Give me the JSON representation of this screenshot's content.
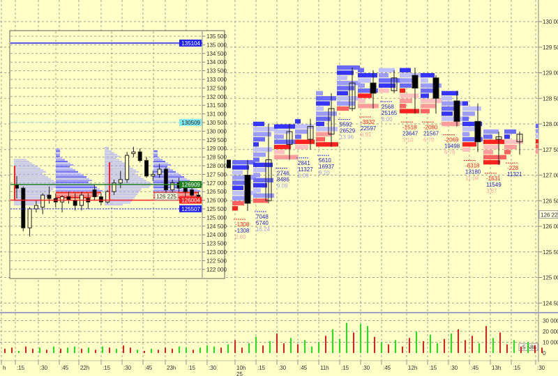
{
  "chart_data": {
    "type": "footprint-candlestick",
    "colors": {
      "background": "#ffffc8",
      "buy": "#3535ff",
      "sell": "#ff2020",
      "buy_light": "#a8a8ff",
      "sell_light": "#ff9c9c",
      "vol_up": "#20e020",
      "vol_down": "#e02020",
      "grid": "#a0a090"
    },
    "price_axis": {
      "ticks": [
        "130 000",
        "129 500",
        "129 000",
        "128 500",
        "128 000",
        "127 500",
        "127 000",
        "126 500",
        "126 000",
        "125 500",
        "125 000",
        "124 500"
      ],
      "tick_values": [
        130000,
        129500,
        129000,
        128500,
        128000,
        127500,
        127000,
        126500,
        126000,
        125500,
        125000,
        124500
      ],
      "current_label": "126 225",
      "current_value": 126225,
      "range": [
        124500,
        130000
      ]
    },
    "volume_axis": {
      "ticks": [
        "30 000",
        "20 000",
        "10 000",
        "0"
      ],
      "tick_values": [
        30000,
        20000,
        10000,
        0
      ],
      "current_label": "5 586",
      "current_value": 5586
    },
    "time_axis": {
      "labels": [
        "h",
        ":15",
        ":30",
        ":45",
        "22h",
        ":15",
        ":30",
        ":45",
        "23h",
        ":15",
        ":30",
        "10h",
        ":15",
        ":30",
        ":45",
        "11h",
        ":15",
        ":30",
        ":45",
        "12h",
        ":15",
        ":30",
        ":45",
        "13h",
        ":15",
        ":30"
      ],
      "date_label": "25"
    },
    "columns": [
      {
        "time": "10h",
        "open": 127000,
        "high": 127300,
        "low": 126300,
        "close": 126450,
        "delta": "-1308",
        "volume": "-1308",
        "ratio": "2.60"
      },
      {
        "time": "10:15",
        "open": 126500,
        "high": 128000,
        "low": 126450,
        "close": 127300,
        "delta": "7048",
        "volume": "5740",
        "ratio": "16.24"
      },
      {
        "time": "10:30",
        "open": 127600,
        "high": 128000,
        "low": 127300,
        "close": 127850,
        "delta": "2746",
        "volume": "8486",
        "ratio": "9.09"
      },
      {
        "time": "10:45",
        "open": 127700,
        "high": 128100,
        "low": 127500,
        "close": 127950,
        "delta": "2841",
        "volume": "11327",
        "ratio": "8.09"
      },
      {
        "time": "11h",
        "open": 127800,
        "high": 128600,
        "low": 127550,
        "close": 128300,
        "delta": "5610",
        "volume": "16937",
        "ratio": "9.20"
      },
      {
        "time": "11:15",
        "open": 128300,
        "high": 129100,
        "low": 128250,
        "close": 128800,
        "delta": "9592",
        "volume": "26529",
        "ratio": "13.96"
      },
      {
        "time": "11:30",
        "open": 128800,
        "high": 129050,
        "low": 128300,
        "close": 128600,
        "delta": "-3932",
        "volume": "22597",
        "ratio": "8.91"
      },
      {
        "time": "11:45",
        "open": 128650,
        "high": 129050,
        "low": 128600,
        "close": 128900,
        "delta": "2568",
        "volume": "25165",
        "ratio": "8.00"
      },
      {
        "time": "12h",
        "open": 128950,
        "high": 129100,
        "low": 128200,
        "close": 128700,
        "delta": "-1518",
        "volume": "23647",
        "ratio": "3.10"
      },
      {
        "time": "12:15",
        "open": 128900,
        "high": 128950,
        "low": 128200,
        "close": 128500,
        "delta": "-2080",
        "volume": "21567",
        "ratio": "6.70"
      },
      {
        "time": "12:30",
        "open": 128450,
        "high": 128650,
        "low": 127950,
        "close": 128050,
        "delta": "-2069",
        "volume": "19498",
        "ratio": "6.76"
      },
      {
        "time": "12:45",
        "open": 128050,
        "high": 128400,
        "low": 127450,
        "close": 127650,
        "delta": "-6318",
        "volume": "13180",
        "ratio": "11.04"
      },
      {
        "time": "13h",
        "open": 127700,
        "high": 127850,
        "low": 127200,
        "close": 127750,
        "delta": "-1631",
        "volume": "11549",
        "ratio": "3.67"
      },
      {
        "time": "13:15",
        "open": 127650,
        "high": 127850,
        "low": 127400,
        "close": 127800,
        "delta": "-228",
        "volume": "11321",
        "ratio": ""
      }
    ],
    "volume_bars": [
      4,
      5,
      2,
      6,
      4,
      5,
      3,
      6,
      4,
      5,
      6,
      4,
      5,
      3,
      6,
      5,
      4,
      7,
      5,
      3,
      2,
      4,
      3,
      5,
      4,
      6,
      5,
      3,
      5,
      7,
      6,
      5,
      8,
      12,
      5,
      9,
      15,
      7,
      11,
      18,
      9,
      14,
      8,
      12,
      6,
      10,
      16,
      22,
      13,
      28,
      19,
      27,
      25,
      15,
      10,
      8,
      12,
      6,
      14,
      20,
      11,
      17,
      9,
      13,
      18,
      22,
      12,
      16,
      9,
      25,
      14,
      19,
      8,
      12,
      6,
      10,
      7,
      5
    ],
    "volume_bar_up": [
      0,
      0,
      1,
      0,
      0,
      1,
      0,
      1,
      0,
      1,
      1,
      0,
      1,
      0,
      1,
      0,
      1,
      0,
      0,
      1,
      0,
      1,
      0,
      0,
      0,
      1,
      1,
      0,
      1,
      1,
      1,
      0,
      1,
      0,
      0,
      1,
      1,
      0,
      1,
      0,
      0,
      1,
      0,
      1,
      1,
      1,
      0,
      1,
      1,
      1,
      0,
      1,
      1,
      0,
      1,
      0,
      1,
      0,
      0,
      1,
      0,
      1,
      1,
      0,
      1,
      0,
      0,
      0,
      1,
      0,
      1,
      0,
      0,
      1,
      0,
      1,
      0,
      0
    ],
    "inset": {
      "price_ticks": [
        "135 500",
        "135 000",
        "134 500",
        "134 000",
        "133 500",
        "133 000",
        "132 500",
        "132 000",
        "131 500",
        "131 000",
        "130 500",
        "130 000",
        "129 500",
        "129 000",
        "128 500",
        "128 000",
        "127 500",
        "127 000",
        "126 500",
        "126 000",
        "125 500",
        "125 000",
        "124 500",
        "124 000",
        "123 500",
        "123 000",
        "122 500",
        "122 000"
      ],
      "price_range": [
        122000,
        135500
      ],
      "levels": [
        {
          "label": "135104",
          "value": 135104,
          "color": "#2020ff",
          "text_color": "#ffffff",
          "style": "solid"
        },
        {
          "label": "130509",
          "value": 130509,
          "color": "#80e8f0",
          "text_color": "#202020",
          "style": "dotted"
        },
        {
          "label": "126909",
          "value": 126909,
          "color": "#208020",
          "text_color": "#ffffff",
          "style": "solid"
        },
        {
          "label": "126004",
          "value": 126004,
          "color": "#ff2020",
          "text_color": "#ffffff",
          "style": "solid"
        },
        {
          "label": "125507",
          "value": 125507,
          "color": "#2020ff",
          "text_color": "#ffffff",
          "style": "dotted"
        }
      ],
      "current_label": "126 225",
      "profiles": [
        {
          "low": 125700,
          "high": 128400,
          "poc": 126800,
          "style": "dotted"
        },
        {
          "low": 126100,
          "high": 129000,
          "poc": 126500,
          "style": "solid"
        },
        {
          "low": 125700,
          "high": 129100,
          "poc": 126900,
          "style": "dotted"
        },
        {
          "low": 126100,
          "high": 128900,
          "poc": 126500,
          "style": "solid"
        }
      ],
      "candles": [
        [
          126900,
          127400,
          126100,
          126700
        ],
        [
          126700,
          126800,
          124200,
          124400
        ],
        [
          124400,
          125600,
          123900,
          125500
        ],
        [
          125500,
          126000,
          125300,
          125700
        ],
        [
          125600,
          126400,
          125200,
          126300
        ],
        [
          126300,
          126800,
          125800,
          126100
        ],
        [
          126100,
          126400,
          125600,
          125900
        ],
        [
          125900,
          126300,
          125300,
          126200
        ],
        [
          126200,
          126500,
          125800,
          126000
        ],
        [
          126000,
          126400,
          125400,
          125700
        ],
        [
          125700,
          126500,
          125400,
          126300
        ],
        [
          126100,
          126400,
          125500,
          125900
        ],
        [
          126600,
          126900,
          126000,
          126200
        ],
        [
          126200,
          126400,
          125700,
          125900
        ],
        [
          125900,
          126600,
          125800,
          126500
        ],
        [
          126500,
          127200,
          126300,
          127000
        ],
        [
          127000,
          127700,
          126700,
          127200
        ],
        [
          127200,
          128800,
          127000,
          128600
        ],
        [
          128700,
          129100,
          128500,
          128800
        ],
        [
          128800,
          129000,
          128200,
          128300
        ],
        [
          128300,
          128500,
          127300,
          127400
        ],
        [
          127400,
          127700,
          127100,
          127500
        ],
        [
          127500,
          128100,
          127300,
          127800
        ],
        [
          127800,
          127900,
          126300,
          126600
        ],
        [
          126600,
          127200,
          126400,
          127000
        ],
        [
          127000,
          127300,
          126500,
          126700
        ],
        [
          126700,
          126900,
          126200,
          126500
        ],
        [
          126600,
          126900,
          126100,
          126300
        ],
        [
          126300,
          126500,
          126100,
          126200
        ]
      ]
    }
  }
}
